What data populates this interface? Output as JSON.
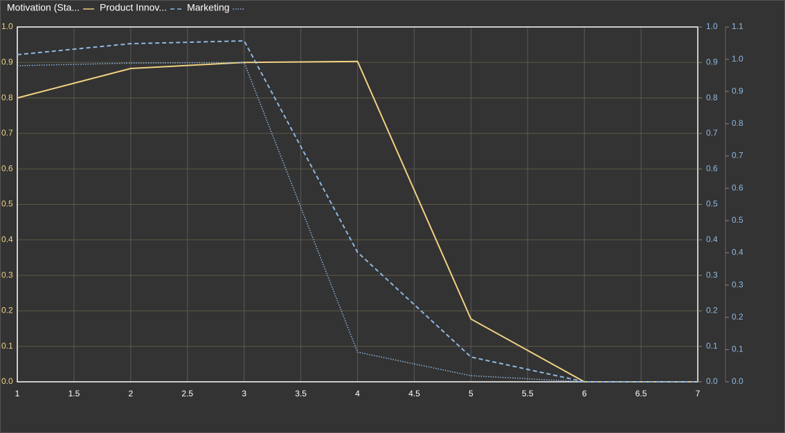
{
  "chart_data": {
    "type": "line",
    "x": [
      1,
      2,
      3,
      4,
      5,
      6,
      7
    ],
    "xlim": [
      1,
      7
    ],
    "xticks": [
      1,
      1.5,
      2,
      2.5,
      3,
      3.5,
      4,
      4.5,
      5,
      5.5,
      6,
      6.5,
      7
    ],
    "ylim": [
      0,
      1
    ],
    "yticks": [
      {
        "value": 0,
        "label": "0.0"
      },
      0.1,
      0.2,
      0.3,
      0.4,
      0.5,
      0.6,
      0.7,
      0.8,
      0.9,
      {
        "value": 1,
        "label": "1.0"
      }
    ],
    "y2lim": [
      0,
      1
    ],
    "y2ticks": [
      {
        "value": 0,
        "label": "0.0"
      },
      0.1,
      0.2,
      0.3,
      0.4,
      0.5,
      0.6,
      0.7,
      0.8,
      0.9,
      {
        "value": 1,
        "label": "1.0"
      }
    ],
    "y3lim": [
      0,
      1.1
    ],
    "y3ticks": [
      {
        "value": 0,
        "label": "0.0"
      },
      0.1,
      0.2,
      0.3,
      0.4,
      0.5,
      0.6,
      0.7,
      0.8,
      0.9,
      {
        "value": 1,
        "label": "1.0"
      },
      1.1
    ],
    "grid": true,
    "legend": "top-left",
    "series": [
      {
        "name": "Motivation (Sta...",
        "color": "#f2d283",
        "style": "solid",
        "axis": "y",
        "values": [
          0.8,
          0.883,
          0.9,
          0.903,
          0.177,
          0,
          0
        ]
      },
      {
        "name": "Product Innov...",
        "color": "#8fb9e3",
        "style": "dashed",
        "axis": "y2",
        "values": [
          0.922,
          0.953,
          0.961,
          0.365,
          0.07,
          0,
          0
        ]
      },
      {
        "name": "Marketing",
        "color": "#8fb9e3",
        "style": "dotted",
        "axis": "y3",
        "values": [
          0.98,
          0.988,
          0.99,
          0.092,
          0.019,
          0,
          0
        ]
      }
    ]
  }
}
